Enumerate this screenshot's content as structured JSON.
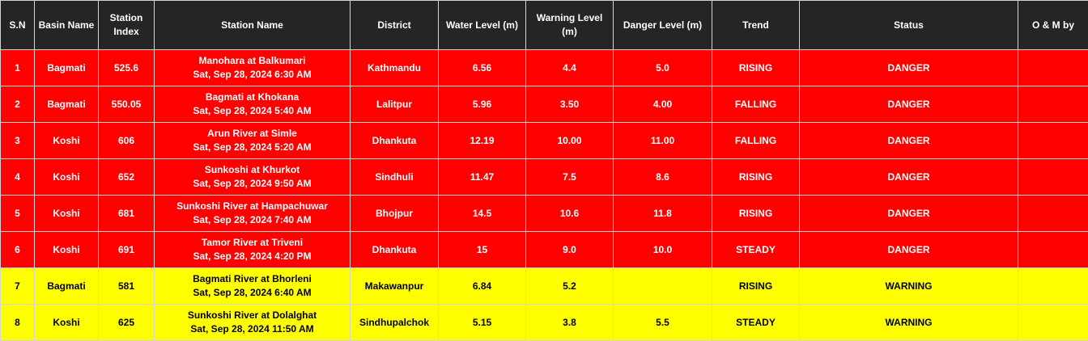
{
  "table": {
    "headers": [
      "S.N",
      "Basin Name",
      "Station Index",
      "Station Name",
      "District",
      "Water Level (m)",
      "Warning Level (m)",
      "Danger Level (m)",
      "Trend",
      "Status",
      "O & M by"
    ],
    "rows": [
      {
        "sn": "1",
        "basin": "Bagmati",
        "index": "525.6",
        "station": "Manohara at Balkumari",
        "time": "Sat, Sep 28, 2024 6:30 AM",
        "district": "Kathmandu",
        "water": "6.56",
        "warning": "4.4",
        "danger": "5.0",
        "trend": "RISING",
        "status": "DANGER",
        "om": ""
      },
      {
        "sn": "2",
        "basin": "Bagmati",
        "index": "550.05",
        "station": "Bagmati at Khokana",
        "time": "Sat, Sep 28, 2024 5:40 AM",
        "district": "Lalitpur",
        "water": "5.96",
        "warning": "3.50",
        "danger": "4.00",
        "trend": "FALLING",
        "status": "DANGER",
        "om": ""
      },
      {
        "sn": "3",
        "basin": "Koshi",
        "index": "606",
        "station": "Arun River at Simle",
        "time": "Sat, Sep 28, 2024 5:20 AM",
        "district": "Dhankuta",
        "water": "12.19",
        "warning": "10.00",
        "danger": "11.00",
        "trend": "FALLING",
        "status": "DANGER",
        "om": ""
      },
      {
        "sn": "4",
        "basin": "Koshi",
        "index": "652",
        "station": "Sunkoshi at Khurkot",
        "time": "Sat, Sep 28, 2024 9:50 AM",
        "district": "Sindhuli",
        "water": "11.47",
        "warning": "7.5",
        "danger": "8.6",
        "trend": "RISING",
        "status": "DANGER",
        "om": ""
      },
      {
        "sn": "5",
        "basin": "Koshi",
        "index": "681",
        "station": "Sunkoshi River at Hampachuwar",
        "time": "Sat, Sep 28, 2024 7:40 AM",
        "district": "Bhojpur",
        "water": "14.5",
        "warning": "10.6",
        "danger": "11.8",
        "trend": "RISING",
        "status": "DANGER",
        "om": ""
      },
      {
        "sn": "6",
        "basin": "Koshi",
        "index": "691",
        "station": "Tamor River at Triveni",
        "time": "Sat, Sep 28, 2024 4:20 PM",
        "district": "Dhankuta",
        "water": "15",
        "warning": "9.0",
        "danger": "10.0",
        "trend": "STEADY",
        "status": "DANGER",
        "om": ""
      },
      {
        "sn": "7",
        "basin": "Bagmati",
        "index": "581",
        "station": "Bagmati River at Bhorleni",
        "time": "Sat, Sep 28, 2024 6:40 AM",
        "district": "Makawanpur",
        "water": "6.84",
        "warning": "5.2",
        "danger": "",
        "trend": "RISING",
        "status": "WARNING",
        "om": ""
      },
      {
        "sn": "8",
        "basin": "Koshi",
        "index": "625",
        "station": "Sunkoshi River at Dolalghat",
        "time": "Sat, Sep 28, 2024 11:50 AM",
        "district": "Sindhupalchok",
        "water": "5.15",
        "warning": "3.8",
        "danger": "5.5",
        "trend": "STEADY",
        "status": "WARNING",
        "om": ""
      }
    ]
  },
  "colors": {
    "header_bg": "#252525",
    "danger_bg": "#ff0000",
    "warning_bg": "#ffff00"
  }
}
